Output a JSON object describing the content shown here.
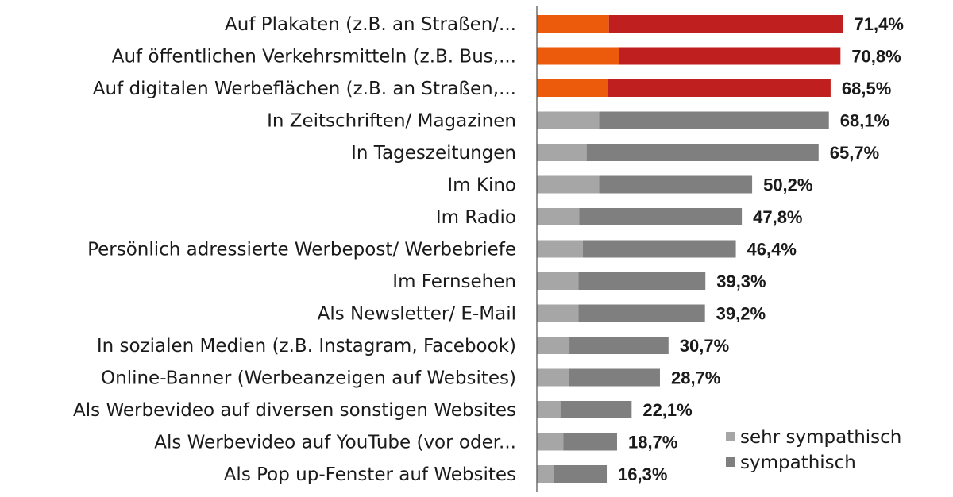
{
  "chart_data": {
    "type": "bar",
    "orientation": "horizontal",
    "stacked": true,
    "categories": [
      "Auf Plakaten (z.B. an Straßen/...",
      "Auf öffentlichen Verkehrsmitteln (z.B. Bus,...",
      "Auf digitalen Werbeflächen (z.B. an Straßen,...",
      "In Zeitschriften/ Magazinen",
      "In Tageszeitungen",
      "Im Kino",
      "Im Radio",
      "Persönlich adressierte Werbepost/ Werbebriefe",
      "Im Fernsehen",
      "Als Newsletter/ E-Mail",
      "In sozialen Medien (z.B. Instagram, Facebook)",
      "Online-Banner (Werbeanzeigen auf Websites)",
      "Als Werbevideo auf diversen sonstigen Websites",
      "Als Werbevideo auf YouTube (vor oder...",
      "Als Pop up-Fenster auf Websites"
    ],
    "series": [
      {
        "name": "sehr sympathisch",
        "values": [
          16.8,
          19.1,
          16.6,
          14.5,
          11.6,
          14.5,
          9.9,
          10.7,
          9.7,
          9.7,
          7.6,
          7.4,
          5.5,
          6.2,
          3.9
        ]
      },
      {
        "name": "sympathisch",
        "values": [
          54.6,
          51.7,
          51.9,
          53.6,
          54.1,
          35.7,
          37.9,
          35.7,
          29.6,
          29.5,
          23.1,
          21.3,
          16.6,
          12.5,
          12.4
        ]
      }
    ],
    "totals": [
      71.4,
      70.8,
      68.5,
      68.1,
      65.7,
      50.2,
      47.8,
      46.4,
      39.3,
      39.2,
      30.7,
      28.7,
      22.1,
      18.7,
      16.3
    ],
    "total_labels": [
      "71,4%",
      "70,8%",
      "68,5%",
      "68,1%",
      "65,7%",
      "50,2%",
      "47,8%",
      "46,4%",
      "39,3%",
      "39,2%",
      "30,7%",
      "28,7%",
      "22,1%",
      "18,7%",
      "16,3%"
    ],
    "highlighted_count": 3,
    "colors": {
      "highlight_light": "#ec5a0b",
      "highlight_dark": "#c01f1f",
      "normal_light": "#a6a6a6",
      "normal_dark": "#7f7f7f",
      "axis": "#595959"
    },
    "legend": {
      "placement": "bottom-right",
      "items": [
        {
          "label": "sehr sympathisch",
          "color": "#a6a6a6"
        },
        {
          "label": "sympathisch",
          "color": "#7f7f7f"
        }
      ]
    },
    "xlim": [
      0,
      100
    ],
    "grid": false
  }
}
